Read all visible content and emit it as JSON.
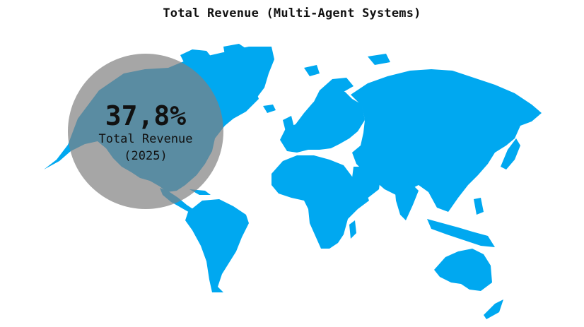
{
  "title": "Total Revenue (Multi-Agent Systems)",
  "map": {
    "land_color": "#00A8F0",
    "highlight_region": "North America",
    "bubble_color": "#808080"
  },
  "stat": {
    "value": "37,8%",
    "label_line1": "Total Revenue",
    "label_line2": "(2025)"
  }
}
